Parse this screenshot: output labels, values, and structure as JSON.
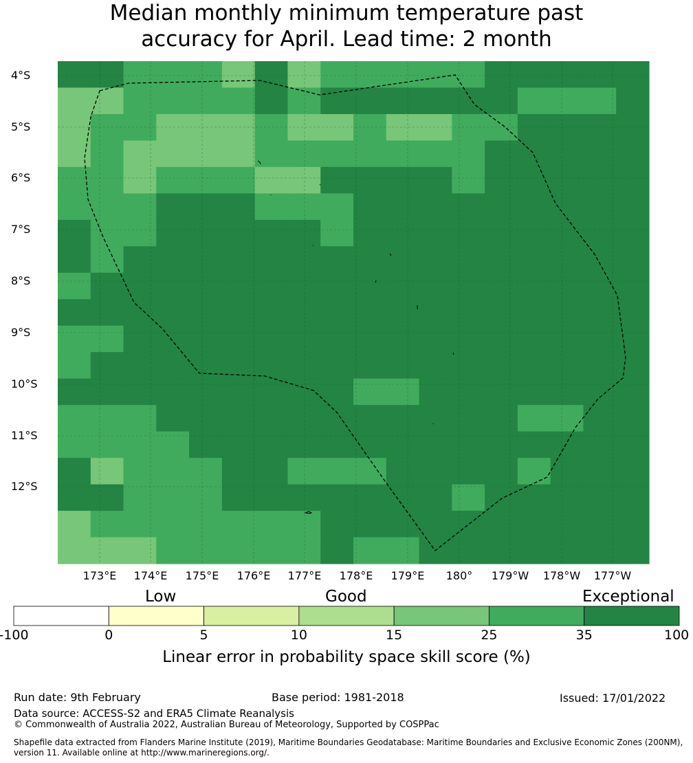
{
  "title": {
    "line1": "Median monthly minimum temperature past",
    "line2": "accuracy for April. Lead time: 2 month"
  },
  "map": {
    "lat_labels": [
      "4°S",
      "5°S",
      "6°S",
      "7°S",
      "8°S",
      "9°S",
      "10°S",
      "11°S",
      "12°S"
    ],
    "lon_labels": [
      "173°E",
      "174°E",
      "175°E",
      "176°E",
      "177°E",
      "178°E",
      "179°E",
      "180°",
      "179°W",
      "178°W",
      "177°W"
    ],
    "grid": [
      "DDCCCBDBCCCCCDDDDD",
      "BBCCCCDCDDDDDDCCCE",
      "BCCBBBCBBCBBCCDEEE",
      "BCBBBBCCCCCCCEEEEE",
      "CCBCCCBBEEEECEEEEE",
      "CCCEEECCCEEEEEEEEE",
      "ECCEEEEECEEEEEEEEE",
      "ECEEEEEEEEEEEEEEEE",
      "CEEEEEEEEEEEEEEEEE",
      "EEEEEEEEEEEEEEEEEE",
      "CCEEEEEEEEEEEEEEEE",
      "CEEEEEEEEEEEEEEDEE",
      "EEEEEEEEECCEEEEEEE",
      "CCCEEEEEEEEEEECCEE",
      "CCCCEEEEEEEEEEDEEE",
      "EBCCCEECCCEEEDCEEE",
      "EECCCEEEEEDDCEEEEE",
      "BCCCCCCCDDDEEDDDDE",
      "BBBCCCCCECCEEDDDDE"
    ],
    "palette": {
      "A": "#ffffd4",
      "B": "#78c679",
      "C": "#41ab5d",
      "D": "#238443",
      "E": "#238443"
    }
  },
  "legend": {
    "categories": [
      "Low",
      "Good",
      "Exceptional"
    ],
    "ticks": [
      "-100",
      "0",
      "5",
      "10",
      "15",
      "25",
      "35",
      "100"
    ],
    "colors": [
      "#ffffff",
      "#ffffcc",
      "#d9f0a3",
      "#addd8e",
      "#78c679",
      "#41ab5d",
      "#238443"
    ],
    "label": "Linear error in probability space skill score (%)"
  },
  "footer": {
    "run_date": "Run date: 9th February",
    "base_period": "Base period: 1981-2018",
    "issued": "Issued: 17/01/2022",
    "data_source": "Data source: ACCESS-S2 and ERA5 Climate Reanalysis",
    "copyright": "© Commonwealth of Australia 2022, Australian Bureau of Meteorology, Supported by COSPPac",
    "shapefile_line1": "Shapefile data extracted from Flanders Marine Institute (2019), Maritime Boundaries Geodatabase: Maritime Boundaries and Exclusive Economic Zones (200NM),",
    "shapefile_line2": "version 11. Available online at http://www.marineregions.org/."
  }
}
